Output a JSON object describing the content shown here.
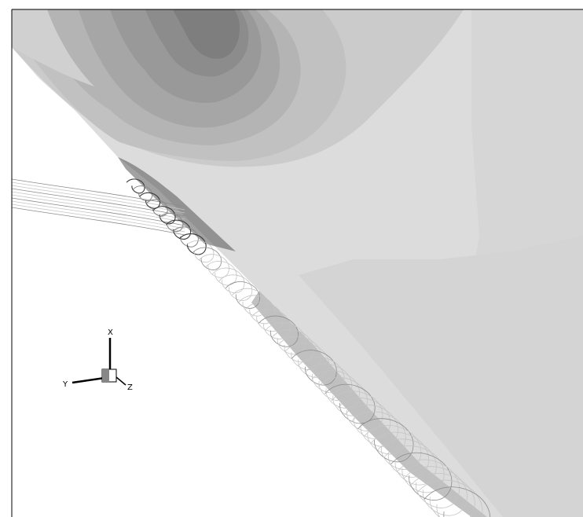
{
  "triad": {
    "x_label": "X",
    "y_label": "Y",
    "z_label": "Z"
  },
  "colors": {
    "background": "#ffffff",
    "frame": "#000000",
    "contour_levels": [
      "#e2e2e2",
      "#dcdcdc",
      "#d2d2d2",
      "#c8c8c8",
      "#bdbdbd",
      "#b0b0b0",
      "#a3a3a3",
      "#969696",
      "#8a8a8a",
      "#7d7d7d"
    ],
    "streamline_light": "#c4c4c4",
    "streamline_mid": "#8c8c8c",
    "streamline_dark": "#3a3a3a"
  }
}
